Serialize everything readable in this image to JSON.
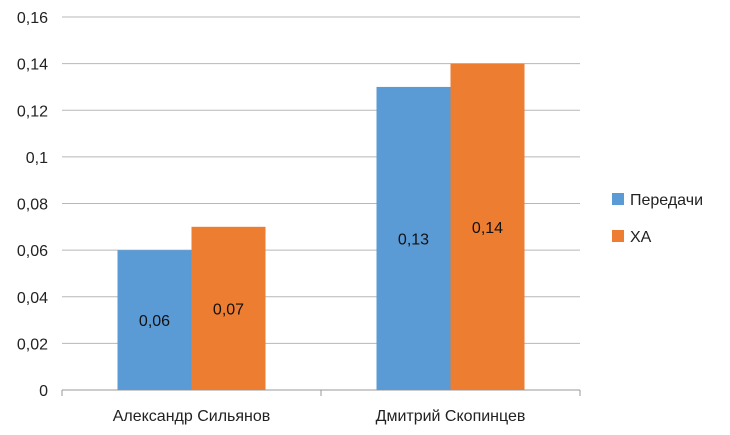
{
  "chart_data": {
    "type": "bar",
    "categories": [
      "Александр Сильянов",
      "Дмитрий Скопинцев"
    ],
    "series": [
      {
        "name": "Передачи",
        "color": "#5B9BD5",
        "values": [
          0.06,
          0.13
        ],
        "labels": [
          "0,06",
          "0,13"
        ]
      },
      {
        "name": "ХА",
        "color": "#ED7D31",
        "values": [
          0.07,
          0.14
        ],
        "labels": [
          "0,07",
          "0,14"
        ]
      }
    ],
    "yticks": [
      0,
      0.02,
      0.04,
      0.06,
      0.08,
      0.1,
      0.12,
      0.14,
      0.16
    ],
    "ytick_labels": [
      "0",
      "0,02",
      "0,04",
      "0,06",
      "0,08",
      "0,1",
      "0,12",
      "0,14",
      "0,16"
    ],
    "ylim": [
      0,
      0.16
    ],
    "grid": true,
    "legend_position": "right",
    "gridline_color": "#b7b7b7",
    "axis_color": "#9a9a9a"
  }
}
